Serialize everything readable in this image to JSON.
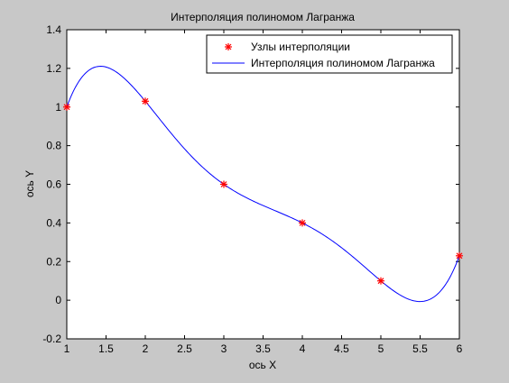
{
  "chart_data": {
    "type": "line",
    "title": "Интерполяция полиномом Лагранжа",
    "xlabel": "ось X",
    "ylabel": "ось Y",
    "xlim": [
      1,
      6
    ],
    "ylim": [
      -0.2,
      1.4
    ],
    "xticks": [
      "1",
      "1.5",
      "2",
      "2.5",
      "3",
      "3.5",
      "4",
      "4.5",
      "5",
      "5.5",
      "6"
    ],
    "yticks": [
      "-0.2",
      "0",
      "0.2",
      "0.4",
      "0.6",
      "0.8",
      "1",
      "1.2",
      "1.4"
    ],
    "grid": false,
    "legend_position": "top-right",
    "series": [
      {
        "name": "Узлы интерполяции",
        "kind": "markers",
        "marker": "asterisk",
        "color": "#ff0000",
        "x": [
          1,
          2,
          3,
          4,
          5,
          6
        ],
        "y": [
          1.0,
          1.03,
          0.6,
          0.4,
          0.1,
          0.23
        ]
      },
      {
        "name": "Интерполяция полиномом Лагранжа",
        "kind": "line",
        "color": "#0000ff",
        "interpolation": "lagrange",
        "nodes_x": [
          1,
          2,
          3,
          4,
          5,
          6
        ],
        "nodes_y": [
          1.0,
          1.03,
          0.6,
          0.4,
          0.1,
          0.23
        ]
      }
    ]
  }
}
